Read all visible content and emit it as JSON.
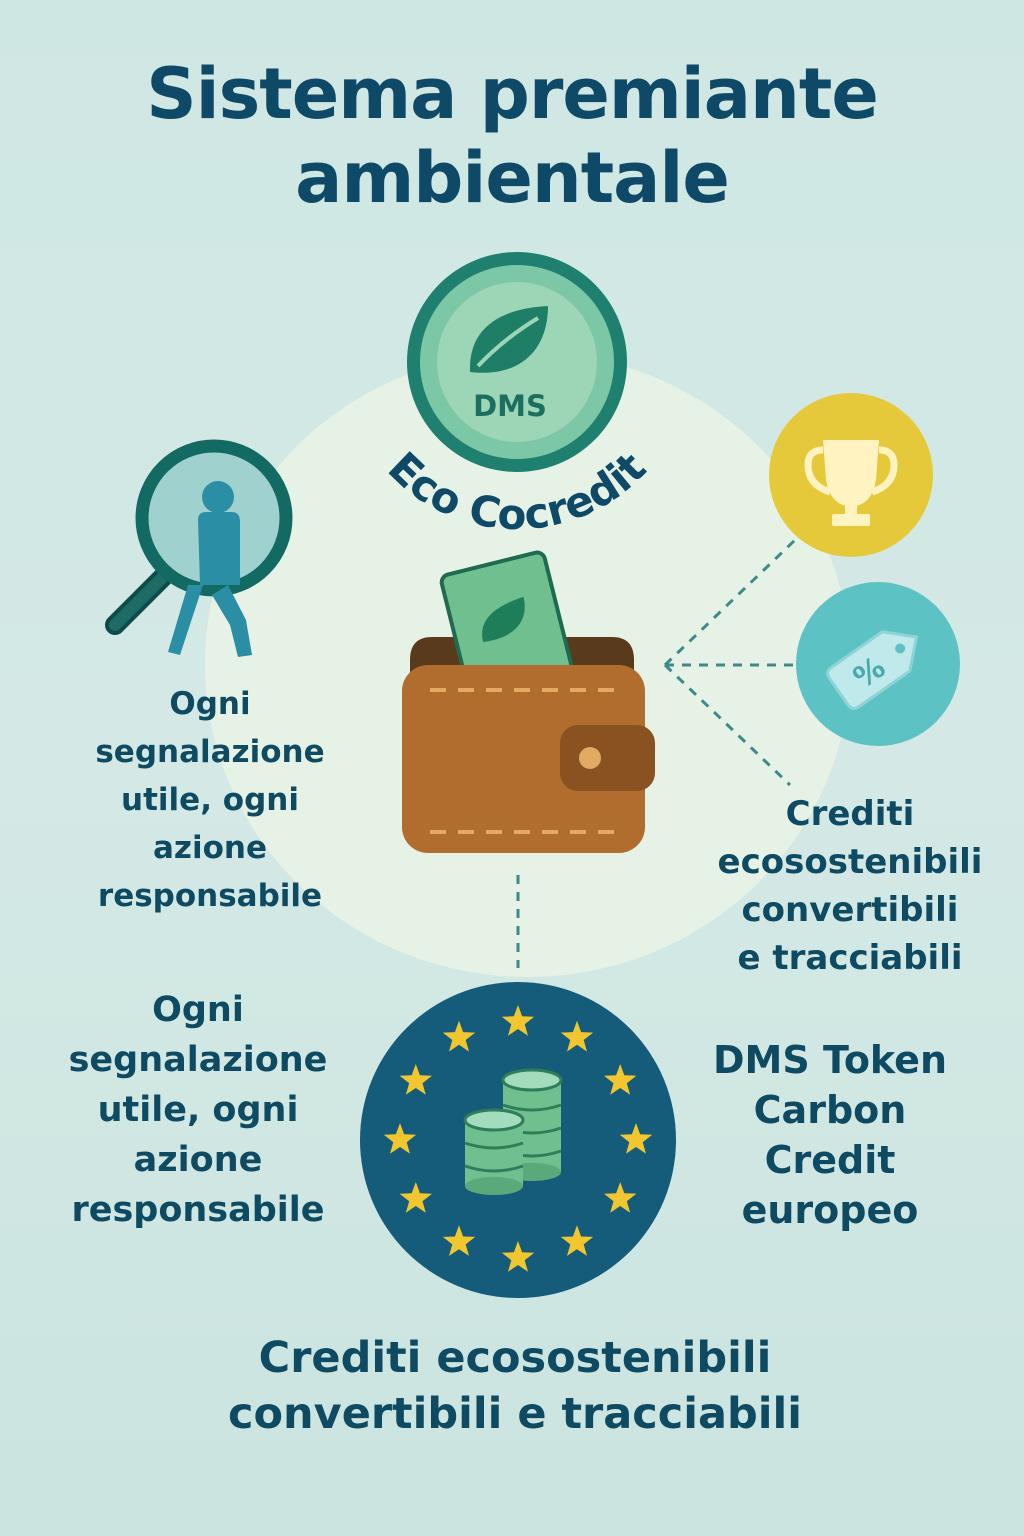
{
  "title": {
    "line1": "Sistema premiante",
    "line2": "ambientale"
  },
  "coin": {
    "brand": "DMS",
    "arc_text": "Eco Cocredit"
  },
  "left_caption": {
    "lines": [
      "Ogni",
      "segnalazione",
      "utile, ogni",
      "azione",
      "responsabile"
    ]
  },
  "right_caption": {
    "lines": [
      "Crediti",
      "ecosostenibili",
      "convertibili",
      "e tracciabili"
    ]
  },
  "left_caption_lower": {
    "lines": [
      "Ogni",
      "segnalazione",
      "utile, ogni",
      "azione",
      "responsabile"
    ]
  },
  "token_caption": {
    "lines": [
      "DMS Token",
      "Carbon",
      "Credit",
      "europeo"
    ]
  },
  "bottom_caption": {
    "line1": "Crediti ecosostenibili",
    "line2": "convertibili e tracciabili"
  },
  "icons": {
    "search": "magnifier-person-icon",
    "coin": "leaf-coin-icon",
    "wallet": "wallet-icon",
    "trophy": "trophy-icon",
    "discount": "discount-tag-icon",
    "eu": "eu-stars-coins-icon"
  },
  "colors": {
    "navy": "#0e4a67",
    "teal": "#2e8a7d",
    "mint": "#8fcfb1",
    "gold": "#e6c93a",
    "cyan": "#5cc2c4",
    "wallet": "#b06d2e",
    "eu_blue": "#155b7a",
    "star": "#f2c62e"
  }
}
